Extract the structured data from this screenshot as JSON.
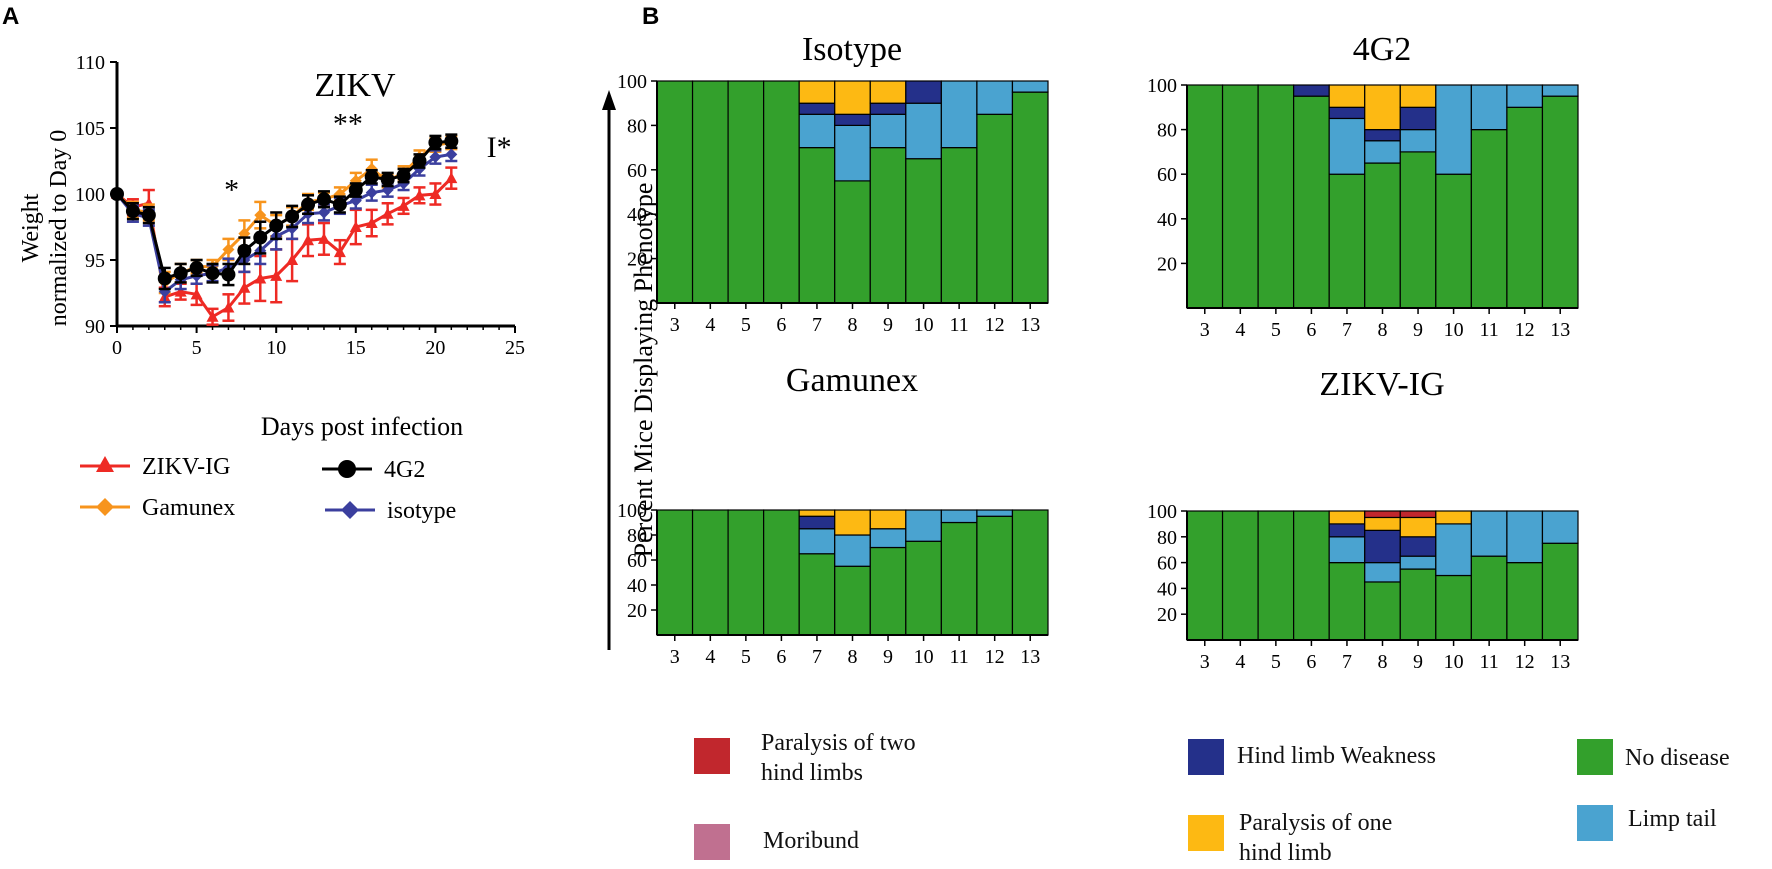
{
  "panel_labels": {
    "a": "A",
    "b": "B"
  },
  "colors": {
    "zikv_ig": "#ee2a24",
    "gamunex": "#f7941d",
    "g4g2": "#000000",
    "isotype": "#3b3f9e",
    "no_disease": "#33a02c",
    "limp_tail": "#4aa3d0",
    "hind_limb_weakness": "#24308a",
    "paralysis_one": "#fdb913",
    "paralysis_two": "#c1272d",
    "moribund": "#c07090"
  },
  "chart_data": [
    {
      "id": "weight",
      "type": "line",
      "title": "ZIKV",
      "xlabel": "Days post infection",
      "ylabel_lines": [
        "Weight",
        "normalized to Day 0"
      ],
      "xlim": [
        0,
        25
      ],
      "ylim": [
        90,
        110
      ],
      "xticks": [
        "0",
        "5",
        "10",
        "15",
        "20",
        "25"
      ],
      "yticks": [
        "90",
        "95",
        "100",
        "105",
        "110"
      ],
      "x": [
        0,
        1,
        2,
        3,
        4,
        5,
        6,
        7,
        8,
        9,
        10,
        11,
        12,
        13,
        14,
        15,
        16,
        17,
        18,
        19,
        20,
        21
      ],
      "series": [
        {
          "name": "ZIKV-IG",
          "marker": "triangle",
          "color_key": "zikv_ig",
          "values": [
            100,
            99.0,
            99.3,
            92.2,
            92.6,
            92.4,
            90.7,
            91.4,
            92.9,
            93.6,
            93.8,
            95.0,
            96.5,
            96.6,
            95.6,
            97.5,
            97.8,
            98.5,
            99.1,
            99.9,
            100.0,
            101.2
          ],
          "errors": [
            0,
            0.6,
            1.0,
            0.7,
            0.6,
            0.8,
            0.6,
            1.0,
            1.2,
            1.7,
            2.0,
            1.6,
            1.2,
            1.2,
            0.9,
            1.3,
            1.0,
            0.8,
            0.6,
            0.6,
            0.8,
            0.8
          ]
        },
        {
          "name": "Gamunex",
          "marker": "diamond",
          "color_key": "gamunex",
          "values": [
            100,
            98.8,
            98.6,
            93.3,
            94.0,
            94.5,
            94.5,
            95.8,
            97.0,
            98.4,
            97.6,
            98.3,
            99.4,
            99.6,
            100.0,
            101.0,
            101.9,
            101.0,
            101.6,
            102.8,
            103.7,
            103.9
          ],
          "errors": [
            0,
            0.6,
            0.6,
            0.8,
            0.7,
            0.5,
            0.5,
            0.8,
            1.0,
            1.0,
            0.8,
            0.7,
            0.6,
            0.5,
            0.5,
            0.6,
            0.7,
            0.5,
            0.5,
            0.5,
            0.5,
            0.5
          ]
        },
        {
          "name": "4G2",
          "marker": "circle",
          "color_key": "g4g2",
          "values": [
            100,
            98.7,
            98.4,
            93.6,
            94.0,
            94.4,
            94.0,
            93.9,
            95.7,
            96.7,
            97.6,
            98.3,
            99.2,
            99.6,
            99.2,
            100.3,
            101.3,
            101.1,
            101.4,
            102.5,
            103.9,
            104.0
          ],
          "errors": [
            0,
            0.6,
            0.6,
            0.8,
            0.7,
            0.6,
            0.7,
            0.8,
            1.0,
            1.2,
            1.0,
            0.8,
            0.7,
            0.6,
            0.6,
            0.5,
            0.5,
            0.5,
            0.5,
            0.5,
            0.5,
            0.5
          ]
        },
        {
          "name": "isotype",
          "marker": "diamond",
          "color_key": "isotype",
          "values": [
            100,
            98.5,
            98.2,
            92.6,
            93.5,
            93.8,
            94.0,
            94.4,
            95.0,
            95.7,
            96.8,
            97.4,
            98.5,
            98.6,
            99.1,
            99.5,
            100.1,
            100.3,
            100.8,
            101.9,
            102.8,
            103.0
          ],
          "errors": [
            0,
            0.6,
            0.6,
            0.8,
            0.7,
            0.6,
            0.6,
            0.7,
            0.9,
            1.0,
            1.0,
            0.8,
            0.7,
            0.6,
            0.6,
            0.6,
            0.6,
            0.5,
            0.5,
            0.5,
            0.5,
            0.5
          ]
        }
      ],
      "annotations": [
        {
          "text": "*",
          "x": 7.2,
          "y": 99.6
        },
        {
          "text": "**",
          "x": 14.5,
          "y": 104.6
        },
        {
          "text": "I*",
          "x": 24.0,
          "y": 102.8
        }
      ]
    },
    {
      "id": "isotype_stack",
      "type": "stacked-bar",
      "title": "Isotype",
      "categories": [
        "3",
        "4",
        "5",
        "6",
        "7",
        "8",
        "9",
        "10",
        "11",
        "12",
        "13"
      ],
      "yticks": [
        "20",
        "40",
        "60",
        "80",
        "100"
      ],
      "ylim": [
        0,
        100
      ],
      "series": [
        {
          "name": "No disease",
          "color_key": "no_disease",
          "values": [
            100,
            100,
            100,
            100,
            70,
            55,
            70,
            65,
            70,
            85,
            95
          ]
        },
        {
          "name": "Limp tail",
          "color_key": "limp_tail",
          "values": [
            0,
            0,
            0,
            0,
            15,
            25,
            15,
            25,
            30,
            15,
            5
          ]
        },
        {
          "name": "Hind limb Weakness",
          "color_key": "hind_limb_weakness",
          "values": [
            0,
            0,
            0,
            0,
            5,
            5,
            5,
            10,
            0,
            0,
            0
          ]
        },
        {
          "name": "Paralysis of one hind limb",
          "color_key": "paralysis_one",
          "values": [
            0,
            0,
            0,
            0,
            10,
            15,
            10,
            0,
            0,
            0,
            0
          ]
        },
        {
          "name": "Paralysis of two hind limbs",
          "color_key": "paralysis_two",
          "values": [
            0,
            0,
            0,
            0,
            0,
            0,
            0,
            0,
            0,
            0,
            0
          ]
        }
      ]
    },
    {
      "id": "g4g2_stack",
      "type": "stacked-bar",
      "title": "4G2",
      "categories": [
        "3",
        "4",
        "5",
        "6",
        "7",
        "8",
        "9",
        "10",
        "11",
        "12",
        "13"
      ],
      "yticks": [
        "20",
        "40",
        "60",
        "80",
        "100"
      ],
      "ylim": [
        0,
        100
      ],
      "series": [
        {
          "name": "No disease",
          "color_key": "no_disease",
          "values": [
            100,
            100,
            100,
            95,
            60,
            65,
            70,
            60,
            80,
            90,
            95
          ]
        },
        {
          "name": "Limp tail",
          "color_key": "limp_tail",
          "values": [
            0,
            0,
            0,
            0,
            25,
            10,
            10,
            40,
            20,
            10,
            5
          ]
        },
        {
          "name": "Hind limb Weakness",
          "color_key": "hind_limb_weakness",
          "values": [
            0,
            0,
            0,
            5,
            5,
            5,
            10,
            0,
            0,
            0,
            0
          ]
        },
        {
          "name": "Paralysis of one hind limb",
          "color_key": "paralysis_one",
          "values": [
            0,
            0,
            0,
            0,
            10,
            20,
            10,
            0,
            0,
            0,
            0
          ]
        },
        {
          "name": "Paralysis of two hind limbs",
          "color_key": "paralysis_two",
          "values": [
            0,
            0,
            0,
            0,
            0,
            0,
            0,
            0,
            0,
            0,
            0
          ]
        }
      ]
    },
    {
      "id": "gamunex_stack",
      "type": "stacked-bar",
      "title": "Gamunex",
      "categories": [
        "3",
        "4",
        "5",
        "6",
        "7",
        "8",
        "9",
        "10",
        "11",
        "12",
        "13"
      ],
      "yticks": [
        "20",
        "40",
        "60",
        "80",
        "100"
      ],
      "ylim": [
        0,
        100
      ],
      "series": [
        {
          "name": "No disease",
          "color_key": "no_disease",
          "values": [
            100,
            100,
            100,
            100,
            65,
            55,
            70,
            75,
            90,
            95,
            100
          ]
        },
        {
          "name": "Limp tail",
          "color_key": "limp_tail",
          "values": [
            0,
            0,
            0,
            0,
            20,
            25,
            15,
            25,
            10,
            5,
            0
          ]
        },
        {
          "name": "Hind limb Weakness",
          "color_key": "hind_limb_weakness",
          "values": [
            0,
            0,
            0,
            0,
            10,
            0,
            0,
            0,
            0,
            0,
            0
          ]
        },
        {
          "name": "Paralysis of one hind limb",
          "color_key": "paralysis_one",
          "values": [
            0,
            0,
            0,
            0,
            5,
            20,
            15,
            0,
            0,
            0,
            0
          ]
        },
        {
          "name": "Paralysis of two hind limbs",
          "color_key": "paralysis_two",
          "values": [
            0,
            0,
            0,
            0,
            0,
            0,
            0,
            0,
            0,
            0,
            0
          ]
        }
      ]
    },
    {
      "id": "zikvig_stack",
      "type": "stacked-bar",
      "title": "ZIKV-IG",
      "categories": [
        "3",
        "4",
        "5",
        "6",
        "7",
        "8",
        "9",
        "10",
        "11",
        "12",
        "13"
      ],
      "yticks": [
        "20",
        "40",
        "60",
        "80",
        "100"
      ],
      "ylim": [
        0,
        100
      ],
      "series": [
        {
          "name": "No disease",
          "color_key": "no_disease",
          "values": [
            100,
            100,
            100,
            100,
            60,
            45,
            55,
            50,
            65,
            60,
            75
          ]
        },
        {
          "name": "Limp tail",
          "color_key": "limp_tail",
          "values": [
            0,
            0,
            0,
            0,
            20,
            15,
            10,
            40,
            35,
            40,
            25
          ]
        },
        {
          "name": "Hind limb Weakness",
          "color_key": "hind_limb_weakness",
          "values": [
            0,
            0,
            0,
            0,
            10,
            25,
            15,
            0,
            0,
            0,
            0
          ]
        },
        {
          "name": "Paralysis of one hind limb",
          "color_key": "paralysis_one",
          "values": [
            0,
            0,
            0,
            0,
            10,
            10,
            15,
            10,
            0,
            0,
            0
          ]
        },
        {
          "name": "Paralysis of two hind limbs",
          "color_key": "paralysis_two",
          "values": [
            0,
            0,
            0,
            0,
            0,
            5,
            5,
            0,
            0,
            0,
            0
          ]
        }
      ]
    }
  ],
  "shared_ylabel": "Percent Mice Displaying Phenotype",
  "line_legend": [
    {
      "label": "ZIKV-IG",
      "color_key": "zikv_ig",
      "marker": "triangle"
    },
    {
      "label": "4G2",
      "color_key": "g4g2",
      "marker": "circle"
    },
    {
      "label": "Gamunex",
      "color_key": "gamunex",
      "marker": "diamond"
    },
    {
      "label": "isotype",
      "color_key": "isotype",
      "marker": "diamond"
    }
  ],
  "phenotype_legend": {
    "paralysis_two": [
      "Paralysis of two",
      "hind limbs"
    ],
    "moribund": "Moribund",
    "hind_limb_weakness": "Hind limb Weakness",
    "paralysis_one": [
      "Paralysis of one",
      "hind limb"
    ],
    "no_disease": "No disease",
    "limp_tail": "Limp tail"
  }
}
